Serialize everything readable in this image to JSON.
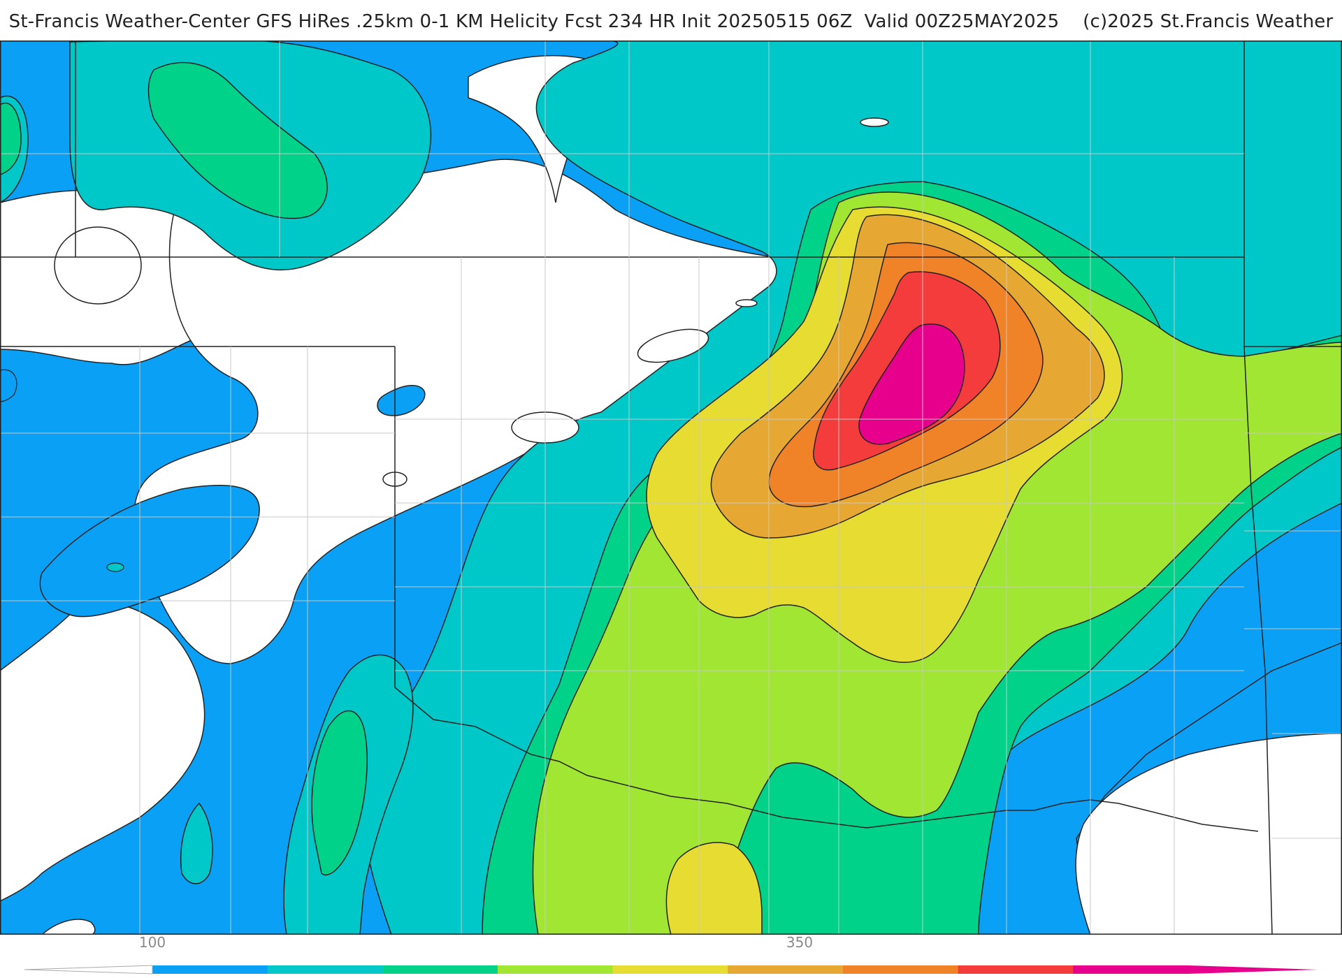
{
  "header": {
    "title": "St-Francis Weather-Center GFS HiRes .25km 0-1 KM Helicity Fcst 234 HR Init 20250515 06Z  Valid 00Z25MAY2025    (c)2025 St.Francis Weather"
  },
  "map": {
    "field": "0-1 KM Helicity",
    "colors": {
      "background": "#ffffff",
      "c1": "#0aa0f5",
      "c2": "#00c8c8",
      "c3": "#00d28a",
      "c4": "#a0e632",
      "c5": "#e6dc32",
      "c6": "#e6a832",
      "c7": "#f08228",
      "c8": "#f53c3c",
      "c9": "#e6008c",
      "boundary": "#222222",
      "county": "#c8c8c8"
    }
  },
  "colorbar": {
    "labels": [
      "100",
      "350"
    ],
    "colors": [
      "#0aa0f5",
      "#00c8c8",
      "#00d28a",
      "#a0e632",
      "#e6dc32",
      "#e6a832",
      "#f08228",
      "#f53c3c",
      "#e6008c"
    ]
  }
}
